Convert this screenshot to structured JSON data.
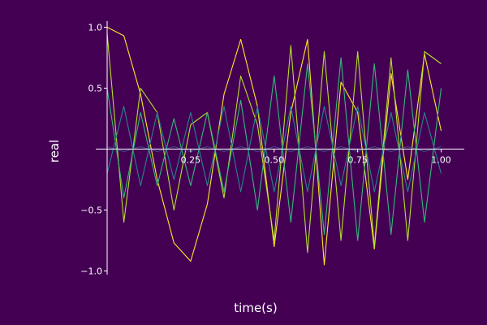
{
  "chart_data": {
    "type": "line",
    "title": "",
    "xlabel": "time(s)",
    "ylabel": "real",
    "xlim": [
      0,
      1.04
    ],
    "ylim": [
      -1.03,
      1.05
    ],
    "xticks": [
      {
        "value": 0.25,
        "label": "0.25"
      },
      {
        "value": 0.5,
        "label": "0.50"
      },
      {
        "value": 0.75,
        "label": "0.75"
      },
      {
        "value": 1.0,
        "label": "1.00"
      }
    ],
    "yticks": [
      {
        "value": 1.0,
        "label": "1.0"
      },
      {
        "value": 0.5,
        "label": "0.5"
      },
      {
        "value": -0.5,
        "label": "−0.5"
      },
      {
        "value": -1.0,
        "label": "−1.0"
      }
    ],
    "grid": false,
    "legend": "none",
    "background": "#440154",
    "series": [
      {
        "color": "#fde725",
        "x": [
          0.0,
          0.05,
          0.1,
          0.15,
          0.2,
          0.25,
          0.3,
          0.35,
          0.4,
          0.45,
          0.5,
          0.55,
          0.6,
          0.65,
          0.7,
          0.75,
          0.8,
          0.85,
          0.9,
          0.95,
          1.0
        ],
        "y": [
          1.0,
          0.93,
          0.45,
          -0.25,
          -0.77,
          -0.92,
          -0.45,
          0.45,
          0.9,
          0.35,
          -0.8,
          0.3,
          0.9,
          -0.95,
          0.55,
          0.3,
          -0.82,
          0.62,
          -0.25,
          0.78,
          0.15
        ]
      },
      {
        "color": "#b5de2b",
        "x": [
          0.0,
          0.05,
          0.1,
          0.15,
          0.2,
          0.25,
          0.3,
          0.35,
          0.4,
          0.45,
          0.5,
          0.55,
          0.6,
          0.65,
          0.7,
          0.75,
          0.8,
          0.85,
          0.9,
          0.95,
          1.0
        ],
        "y": [
          0.95,
          -0.6,
          0.5,
          0.3,
          -0.5,
          0.2,
          0.3,
          -0.4,
          0.6,
          0.2,
          -0.75,
          0.85,
          -0.85,
          0.8,
          -0.75,
          0.8,
          -0.8,
          0.75,
          -0.75,
          0.8,
          0.7
        ]
      },
      {
        "color": "#35b779",
        "x": [
          0.0,
          0.05,
          0.1,
          0.15,
          0.2,
          0.25,
          0.3,
          0.35,
          0.4,
          0.45,
          0.5,
          0.55,
          0.6,
          0.65,
          0.7,
          0.75,
          0.8,
          0.85,
          0.9,
          0.95,
          1.0
        ],
        "y": [
          0.5,
          -0.4,
          0.3,
          -0.3,
          0.25,
          -0.3,
          0.3,
          -0.35,
          0.4,
          -0.5,
          0.6,
          -0.6,
          0.7,
          -0.7,
          0.75,
          -0.75,
          0.7,
          -0.7,
          0.65,
          -0.6,
          0.5
        ]
      },
      {
        "color": "#26828e",
        "x": [
          0.0,
          0.05,
          0.1,
          0.15,
          0.2,
          0.25,
          0.3,
          0.35,
          0.4,
          0.45,
          0.5,
          0.55,
          0.6,
          0.65,
          0.7,
          0.75,
          0.8,
          0.85,
          0.9,
          0.95,
          1.0
        ],
        "y": [
          -0.2,
          0.35,
          -0.3,
          0.3,
          -0.25,
          0.3,
          -0.3,
          0.35,
          -0.35,
          0.35,
          -0.35,
          0.35,
          -0.35,
          0.35,
          -0.3,
          0.35,
          -0.35,
          0.3,
          -0.35,
          0.3,
          -0.2
        ]
      },
      {
        "color": "#3e4a89",
        "x": [
          0.0,
          0.05,
          0.1,
          0.15,
          0.2,
          0.25,
          0.3,
          0.35,
          0.4,
          0.45,
          0.5,
          0.55,
          0.6,
          0.65,
          0.7,
          0.75,
          0.8,
          0.85,
          0.9,
          0.95,
          1.0
        ],
        "y": [
          0.02,
          -0.02,
          0.02,
          -0.02,
          0.02,
          -0.02,
          0.02,
          -0.02,
          0.02,
          -0.02,
          0.02,
          -0.02,
          0.02,
          -0.02,
          0.02,
          -0.02,
          0.02,
          -0.02,
          0.02,
          -0.02,
          0.02
        ]
      }
    ]
  }
}
